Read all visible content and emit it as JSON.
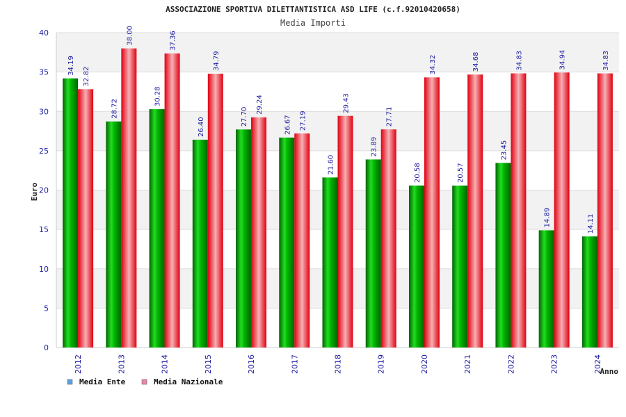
{
  "chart_data": {
    "type": "bar",
    "title": "ASSOCIAZIONE SPORTIVA DILETTANTISTICA ASD LIFE (c.f.92010420658)",
    "subtitle": "Media Importi",
    "xlabel": "Anno",
    "ylabel": "Euro",
    "ylim": [
      0,
      40
    ],
    "yticks": [
      "0",
      "5",
      "10",
      "15",
      "20",
      "25",
      "30",
      "35",
      "40"
    ],
    "grid": true,
    "legend_position": "bottom-left",
    "categories": [
      "2012",
      "2013",
      "2014",
      "2015",
      "2016",
      "2017",
      "2018",
      "2019",
      "2020",
      "2021",
      "2022",
      "2023",
      "2024"
    ],
    "series": [
      {
        "name": "Media Ente",
        "color": "#00a000",
        "legend_color": "#5aa0e6",
        "values": [
          34.19,
          28.72,
          30.28,
          26.4,
          27.7,
          26.67,
          21.6,
          23.89,
          20.58,
          20.57,
          23.45,
          14.89,
          14.11
        ],
        "labels": [
          "34.19",
          "28.72",
          "30.28",
          "26.40",
          "27.70",
          "26.67",
          "21.60",
          "23.89",
          "20.58",
          "20.57",
          "23.45",
          "14.89",
          "14.11"
        ]
      },
      {
        "name": "Media Nazionale",
        "color": "#e8202a",
        "legend_color": "#e68aa8",
        "values": [
          32.82,
          38.0,
          37.36,
          34.79,
          29.24,
          27.19,
          29.43,
          27.71,
          34.32,
          34.68,
          34.83,
          34.94,
          34.83
        ],
        "labels": [
          "32.82",
          "38.00",
          "37.36",
          "34.79",
          "29.24",
          "27.19",
          "29.43",
          "27.71",
          "34.32",
          "34.68",
          "34.83",
          "34.94",
          "34.83"
        ]
      }
    ]
  }
}
